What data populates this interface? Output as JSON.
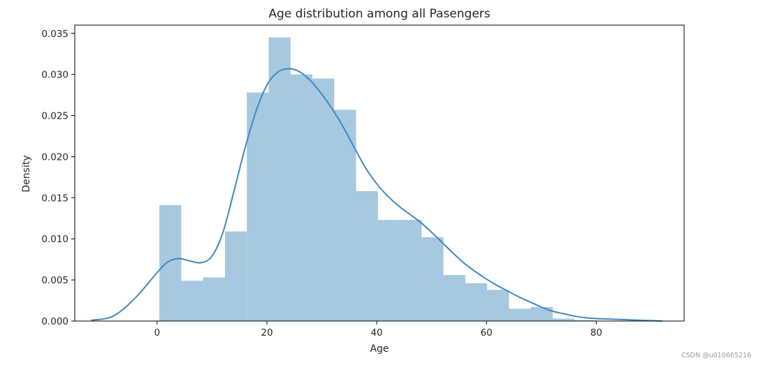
{
  "chart_data": {
    "type": "bar",
    "title": "Age distribution among all Pasengers",
    "xlabel": "Age",
    "ylabel": "Density",
    "xlim": [
      -15,
      96
    ],
    "ylim": [
      0,
      0.036
    ],
    "xticks": [
      0,
      20,
      40,
      60,
      80
    ],
    "yticks": [
      0.0,
      0.005,
      0.01,
      0.015,
      0.02,
      0.025,
      0.03,
      0.035
    ],
    "ytick_labels": [
      "0.000",
      "0.005",
      "0.010",
      "0.015",
      "0.020",
      "0.025",
      "0.030",
      "0.035"
    ],
    "grid": false,
    "histogram": {
      "bin_edges": [
        0.42,
        4.4,
        8.38,
        12.36,
        16.34,
        20.32,
        24.3,
        28.28,
        32.26,
        36.24,
        40.22,
        44.2,
        48.18,
        52.16,
        56.14,
        60.12,
        64.1,
        68.08,
        72.06,
        76.04,
        80.02
      ],
      "values": [
        0.0141,
        0.0049,
        0.0053,
        0.0109,
        0.0278,
        0.0345,
        0.03,
        0.0295,
        0.0257,
        0.0158,
        0.0123,
        0.0123,
        0.0102,
        0.0056,
        0.0046,
        0.0038,
        0.0015,
        0.0017,
        0.0003,
        0.0001
      ],
      "color": "#a6c8e0"
    },
    "kde": {
      "x": [
        -12,
        -8,
        -4,
        0,
        2,
        4,
        6,
        8,
        10,
        12,
        14,
        16,
        18,
        20,
        22,
        24,
        26,
        28,
        30,
        32,
        34,
        36,
        38,
        40,
        42,
        44,
        46,
        48,
        50,
        52,
        54,
        56,
        58,
        60,
        62,
        64,
        66,
        68,
        70,
        72,
        74,
        76,
        78,
        80,
        84,
        88,
        92
      ],
      "y": [
        0.0001,
        0.0006,
        0.0028,
        0.0059,
        0.0072,
        0.0076,
        0.0073,
        0.0071,
        0.0079,
        0.0108,
        0.0158,
        0.021,
        0.0255,
        0.0287,
        0.0303,
        0.0307,
        0.0303,
        0.0292,
        0.0276,
        0.0257,
        0.0235,
        0.021,
        0.0186,
        0.0167,
        0.0152,
        0.014,
        0.013,
        0.012,
        0.0108,
        0.0095,
        0.0082,
        0.007,
        0.006,
        0.0051,
        0.0043,
        0.0036,
        0.0029,
        0.0023,
        0.0017,
        0.0012,
        0.0009,
        0.0006,
        0.0004,
        0.0003,
        0.0002,
        0.0001,
        0.0
      ],
      "color": "#3f87bf"
    }
  },
  "watermark": "CSDN @u010665216"
}
